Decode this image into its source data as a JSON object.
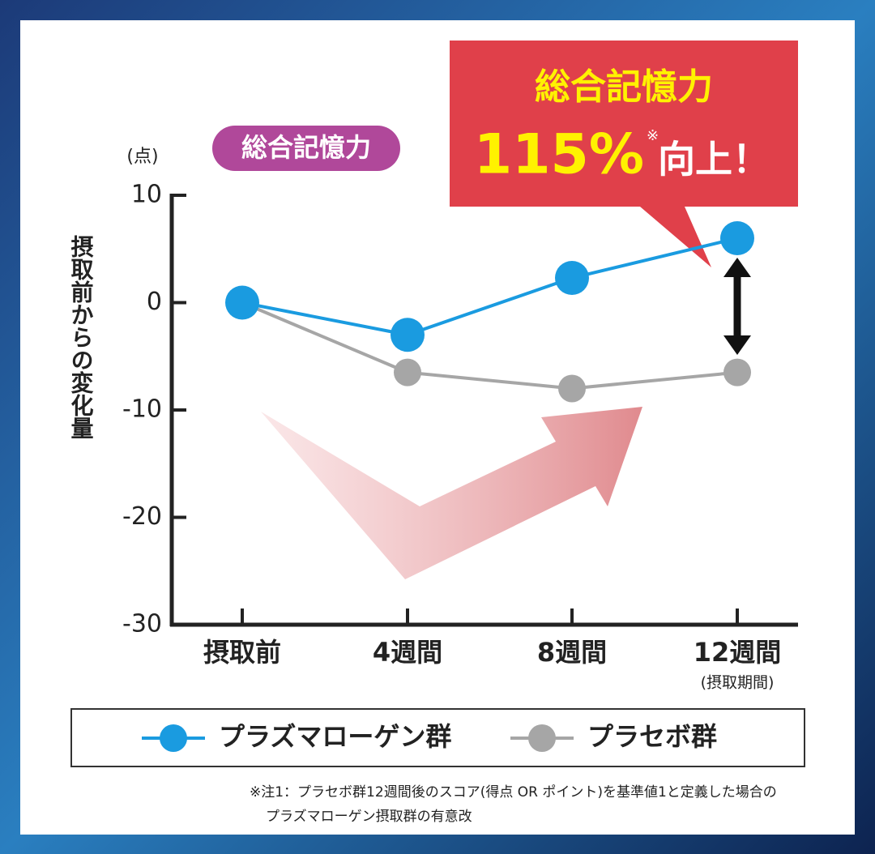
{
  "chart_data": {
    "type": "line",
    "title": "総合記憶力",
    "y_unit_label": "(点)",
    "ylabel": "摂取前からの変化量",
    "categories": [
      "摂取前",
      "4週間",
      "8週間",
      "12週間"
    ],
    "x_sublabel": "(摂取期間)",
    "series": [
      {
        "name": "プラズマローゲン群",
        "color": "#1a9be0",
        "values": [
          0,
          -3,
          2.3,
          6
        ]
      },
      {
        "name": "プラセボ群",
        "color": "#a6a6a6",
        "values": [
          0,
          -6.5,
          -8,
          -6.5
        ]
      }
    ],
    "ylim": [
      -30,
      10
    ],
    "yticks": [
      10,
      0,
      -10,
      -20,
      -30
    ],
    "legend": "bottom",
    "callout": {
      "line1": "総合記憶力",
      "line2": "115%",
      "mark": "※",
      "line3": "向上！"
    },
    "footnote": [
      "※注1：プラセボ群12週間後のスコア(得点 OR ポイント)を基準値1と定義した場合の",
      "プラズマローゲン摂取群の有意改"
    ]
  }
}
